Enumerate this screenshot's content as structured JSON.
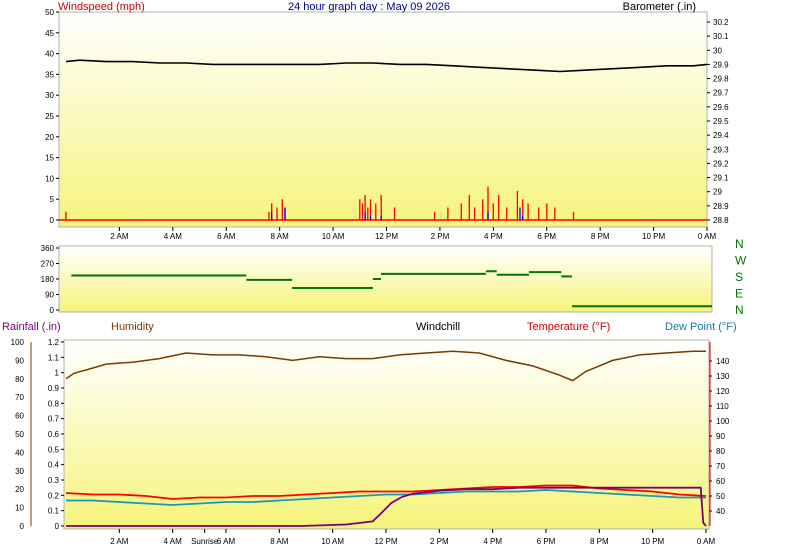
{
  "colors": {
    "wind": "#ff0000",
    "gust_blue": "#0000ff",
    "baro": "#000000",
    "dir": "#007700",
    "rain": "#7a007a",
    "humidity": "#7a3a00",
    "temp": "#ff0000",
    "dew": "#1a9ab0",
    "windchill": "#000000",
    "plot_top": "#ffffff",
    "plot_bottom": "#f6f47a"
  },
  "chart_data": [
    {
      "type": "line",
      "title": "24 hour graph day : May 09 2026",
      "ylabel_left": "Windspeed (mph)",
      "ylabel_right": "Barometer (.in)",
      "ylim_left": [
        0,
        50
      ],
      "ylim_right": [
        28.8,
        30.2
      ],
      "yticks_left": [
        "0",
        "5",
        "10",
        "15",
        "20",
        "25",
        "30",
        "35",
        "40",
        "45",
        "50"
      ],
      "yticks_right": [
        "28.8",
        "28.9",
        "29",
        "29.1",
        "29.2",
        "29.3",
        "29.4",
        "29.5",
        "29.6",
        "29.7",
        "29.8",
        "29.9",
        "30",
        "30.1",
        "30.2"
      ],
      "xticks": [
        "2 AM",
        "4 AM",
        "6 AM",
        "8 AM",
        "10 AM",
        "12 PM",
        "2 PM",
        "4 PM",
        "6 PM",
        "8 PM",
        "10 PM",
        "0 AM"
      ],
      "xlim": [
        0,
        24
      ],
      "grid": false,
      "series": [
        {
          "name": "Barometer (.in)",
          "axis": "right",
          "x": [
            0,
            0.5,
            1.5,
            2.5,
            3.5,
            4.5,
            5.5,
            6.5,
            7.5,
            8.5,
            9.5,
            10.5,
            11.5,
            12.5,
            13.5,
            14.5,
            15.5,
            16.5,
            17.5,
            18.5,
            19.5,
            20.5,
            21.5,
            22.5,
            23.5,
            24
          ],
          "values": [
            29.92,
            29.93,
            29.92,
            29.92,
            29.91,
            29.91,
            29.9,
            29.9,
            29.9,
            29.9,
            29.9,
            29.91,
            29.91,
            29.9,
            29.9,
            29.89,
            29.88,
            29.87,
            29.86,
            29.85,
            29.86,
            29.87,
            29.88,
            29.89,
            29.89,
            29.9
          ]
        },
        {
          "name": "Windspeed (mph)",
          "axis": "left",
          "x": [
            0,
            7.5,
            7.6,
            7.7,
            7.8,
            7.9,
            8.1,
            8.2,
            8.3,
            8.4,
            11,
            11.1,
            11.2,
            11.3,
            11.4,
            11.6,
            11.8,
            12.3,
            13.8,
            14.3,
            14.8,
            15.1,
            15.3,
            15.6,
            15.8,
            16,
            16.2,
            16.5,
            16.9,
            17.1,
            17.3,
            17.7,
            18,
            18.3,
            19,
            24
          ],
          "values": [
            2,
            0,
            2,
            4,
            0,
            3,
            5,
            3,
            0,
            0,
            5,
            4,
            6,
            3,
            5,
            4,
            6,
            3,
            2,
            3,
            4,
            6,
            3,
            5,
            8,
            4,
            6,
            3,
            7,
            5,
            4,
            3,
            4,
            3,
            2,
            0
          ]
        },
        {
          "name": "Gust",
          "axis": "left",
          "x": [
            0,
            7.6,
            7.7,
            7.8,
            8.1,
            8.2,
            8.3,
            11.1,
            11.2,
            11.4,
            11.8,
            15.6,
            15.8,
            16.9,
            17,
            17.1,
            24
          ],
          "values": [
            0,
            0,
            2,
            0,
            0,
            3,
            0,
            0,
            2,
            1,
            1,
            0,
            2,
            0,
            3,
            1,
            0
          ]
        }
      ]
    },
    {
      "type": "scatter",
      "yticks": [
        "0",
        "90",
        "180",
        "270",
        "360"
      ],
      "ylim": [
        0,
        360
      ],
      "compass": [
        "N",
        "W",
        "S",
        "E",
        "N"
      ],
      "xlim": [
        0,
        24
      ],
      "series": [
        {
          "name": "Wind direction",
          "segments": [
            {
              "x0": 0.2,
              "x1": 6.7,
              "value": 200
            },
            {
              "x0": 6.7,
              "x1": 8.4,
              "value": 175
            },
            {
              "x0": 8.4,
              "x1": 11.4,
              "value": 128
            },
            {
              "x0": 11.4,
              "x1": 11.7,
              "value": 180
            },
            {
              "x0": 11.7,
              "x1": 15.6,
              "value": 210
            },
            {
              "x0": 15.6,
              "x1": 16.0,
              "value": 225
            },
            {
              "x0": 16.0,
              "x1": 17.2,
              "value": 205
            },
            {
              "x0": 17.2,
              "x1": 18.4,
              "value": 220
            },
            {
              "x0": 18.4,
              "x1": 18.8,
              "value": 195
            },
            {
              "x0": 18.8,
              "x1": 24.0,
              "value": 22
            }
          ]
        }
      ]
    },
    {
      "type": "line",
      "legend": [
        "Rainfall (.in)",
        "Humidity",
        "Windchill",
        "Temperature (°F)",
        "Dew Point (°F)"
      ],
      "ylim_left": [
        0,
        1.2
      ],
      "ylim_right": [
        30,
        150
      ],
      "ylim_humidity": [
        0,
        100
      ],
      "yticks_left": [
        "0",
        "0.1",
        "0.2",
        "0.3",
        "0.4",
        "0.5",
        "0.6",
        "0.7",
        "0.8",
        "0.9",
        "1",
        "1.1",
        "1.2"
      ],
      "yticks_right": [
        "40",
        "50",
        "60",
        "70",
        "80",
        "90",
        "100",
        "110",
        "120",
        "130",
        "140"
      ],
      "yticks_humidity": [
        "0",
        "10",
        "20",
        "30",
        "40",
        "50",
        "60",
        "70",
        "80",
        "90",
        "100"
      ],
      "xticks": [
        "2 AM",
        "4 AM",
        "Sunrise",
        "6 AM",
        "8 AM",
        "10 AM",
        "12 PM",
        "2 PM",
        "4 PM",
        "6 PM",
        "8 PM",
        "10 PM",
        "0 AM"
      ],
      "xlim": [
        0,
        24
      ],
      "series": [
        {
          "name": "Humidity",
          "axis": "humidity",
          "x": [
            0,
            0.3,
            0.8,
            1.5,
            2.5,
            3.5,
            4.5,
            5.5,
            6.5,
            7.5,
            8.5,
            9.5,
            10.5,
            11.5,
            12.5,
            13.5,
            14.5,
            15.5,
            16.5,
            17.5,
            18.5,
            19,
            19.5,
            20.5,
            21.5,
            22.5,
            23.5,
            24
          ],
          "values": [
            80,
            83,
            85,
            88,
            89,
            91,
            94,
            93,
            93,
            92,
            90,
            92,
            91,
            91,
            93,
            94,
            95,
            94,
            90,
            87,
            82,
            79,
            84,
            90,
            93,
            94,
            95,
            95
          ]
        },
        {
          "name": "Temperature (°F)",
          "axis": "right",
          "x": [
            0,
            1,
            2,
            3,
            4,
            5,
            6,
            7,
            8,
            9,
            10,
            11,
            12,
            13,
            14,
            15,
            16,
            17,
            18,
            19,
            20,
            21,
            22,
            23,
            24
          ],
          "values": [
            52,
            51,
            51,
            50,
            48,
            49,
            49,
            50,
            50,
            51,
            52,
            53,
            53,
            53,
            54,
            55,
            56,
            56,
            57,
            57,
            55,
            54,
            53,
            51,
            50
          ]
        },
        {
          "name": "Dew Point (°F)",
          "axis": "right",
          "x": [
            0,
            1,
            2,
            3,
            4,
            5,
            6,
            7,
            8,
            9,
            10,
            11,
            12,
            13,
            14,
            15,
            16,
            17,
            18,
            19,
            20,
            21,
            22,
            23,
            24
          ],
          "values": [
            47,
            47,
            46,
            45,
            44,
            45,
            46,
            46,
            47,
            48,
            49,
            50,
            51,
            51,
            52,
            53,
            53,
            53,
            54,
            53,
            52,
            51,
            50,
            49,
            49
          ]
        },
        {
          "name": "Rainfall (.in)",
          "axis": "left",
          "x": [
            0,
            8.8,
            10.5,
            11.5,
            11.8,
            12.2,
            12.6,
            13.0,
            13.5,
            14,
            15,
            16,
            17,
            18,
            19,
            20,
            22,
            23.8,
            23.9,
            24
          ],
          "values": [
            0,
            0,
            0.01,
            0.03,
            0.08,
            0.15,
            0.19,
            0.21,
            0.22,
            0.23,
            0.24,
            0.24,
            0.25,
            0.25,
            0.25,
            0.25,
            0.25,
            0.25,
            0.02,
            0.0
          ]
        }
      ]
    }
  ]
}
